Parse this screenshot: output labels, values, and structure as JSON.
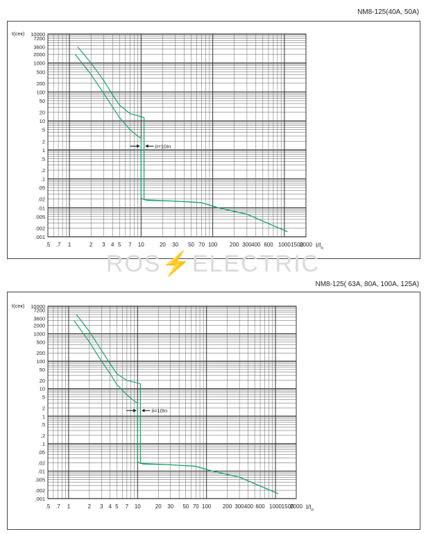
{
  "watermark": {
    "left": "ROS",
    "bolt": "⚡",
    "right": "ELECTRIC"
  },
  "charts": [
    {
      "title": "NM8-125(40A, 50A)",
      "ylabel": "t(сек)",
      "xlabel_main": "I/I",
      "xlabel_sub": "n",
      "annotation": "Ii=10In",
      "y_ticks": [
        "10000",
        "7200",
        "3600",
        "2000",
        "1000",
        "500",
        "200",
        "100",
        "50",
        "20",
        "10",
        "5",
        "2",
        "1",
        ".5",
        ".2",
        ".1",
        ".05",
        ".02",
        ".01",
        ".005",
        ".002",
        ".001"
      ],
      "x_ticks": [
        ".5",
        ".7",
        "1",
        "2",
        "3",
        "4",
        "5",
        "7",
        "10",
        "20",
        "30",
        "50",
        "70",
        "100",
        "200",
        "300",
        "400",
        "600",
        "1000",
        "1500",
        "2000"
      ]
    },
    {
      "title": "NM8-125( 63A, 80A, 100A, 125A)",
      "ylabel": "t(сек)",
      "xlabel_main": "I/I",
      "xlabel_sub": "n",
      "annotation": "Ii=10In",
      "y_ticks": [
        "10000",
        "7200",
        "3600",
        "2000",
        "1000",
        "500",
        "200",
        "100",
        "50",
        "20",
        "10",
        "5",
        "2",
        "1",
        ".5",
        ".2",
        ".1",
        ".05",
        ".02",
        ".01",
        ".005",
        ".002",
        ".001"
      ],
      "x_ticks": [
        ".5",
        ".7",
        "1",
        "2",
        "3",
        "4",
        "5",
        "7",
        "10",
        "20",
        "30",
        "50",
        "70",
        "100",
        "200",
        "300400",
        "600",
        "1000",
        "1500",
        "2000"
      ]
    }
  ],
  "chart_data": [
    {
      "type": "line",
      "title": "NM8-125(40A, 50A)",
      "xlabel": "I/In",
      "ylabel": "t(сек)",
      "xscale": "log",
      "yscale": "log",
      "xlim": [
        0.5,
        2000
      ],
      "ylim": [
        0.001,
        10000
      ],
      "grid": true,
      "series": [
        {
          "points": [
            [
              1.3,
              3600
            ],
            [
              2,
              1000
            ],
            [
              3,
              250
            ],
            [
              4,
              80
            ],
            [
              5,
              35
            ],
            [
              7,
              18
            ],
            [
              10,
              14
            ],
            [
              11,
              13
            ],
            [
              11,
              0.02
            ],
            [
              12,
              0.018
            ],
            [
              30,
              0.017
            ],
            [
              70,
              0.015
            ],
            [
              120,
              0.01
            ],
            [
              300,
              0.006
            ],
            [
              1100,
              0.0015
            ]
          ]
        },
        {
          "points": [
            [
              1.2,
              2000
            ],
            [
              2,
              400
            ],
            [
              3,
              90
            ],
            [
              4,
              30
            ],
            [
              5,
              13
            ],
            [
              7,
              5
            ],
            [
              9,
              3
            ],
            [
              10,
              2.5
            ],
            [
              10,
              0.022
            ],
            [
              11,
              0.019
            ],
            [
              30,
              0.017
            ],
            [
              70,
              0.015
            ],
            [
              120,
              0.01
            ],
            [
              300,
              0.006
            ],
            [
              1100,
              0.0015
            ]
          ]
        }
      ]
    },
    {
      "type": "line",
      "title": "NM8-125( 63A, 80A, 100A, 125A)",
      "xlabel": "I/In",
      "ylabel": "t(сек)",
      "xscale": "log",
      "yscale": "log",
      "xlim": [
        0.5,
        2000
      ],
      "ylim": [
        0.001,
        10000
      ],
      "grid": true,
      "series": [
        {
          "points": [
            [
              1.3,
              5000
            ],
            [
              2,
              1200
            ],
            [
              3,
              250
            ],
            [
              4,
              80
            ],
            [
              5,
              35
            ],
            [
              7,
              20
            ],
            [
              10,
              16
            ],
            [
              11,
              15
            ],
            [
              11,
              0.02
            ],
            [
              12,
              0.018
            ],
            [
              30,
              0.017
            ],
            [
              70,
              0.015
            ],
            [
              120,
              0.01
            ],
            [
              300,
              0.006
            ],
            [
              1100,
              0.0015
            ]
          ]
        },
        {
          "points": [
            [
              1.2,
              3000
            ],
            [
              2,
              500
            ],
            [
              3,
              100
            ],
            [
              4,
              35
            ],
            [
              5,
              14
            ],
            [
              7,
              6
            ],
            [
              9,
              3.5
            ],
            [
              10,
              3
            ],
            [
              10,
              0.022
            ],
            [
              11,
              0.019
            ],
            [
              30,
              0.017
            ],
            [
              70,
              0.015
            ],
            [
              120,
              0.01
            ],
            [
              300,
              0.006
            ],
            [
              1100,
              0.0015
            ]
          ]
        }
      ]
    }
  ]
}
